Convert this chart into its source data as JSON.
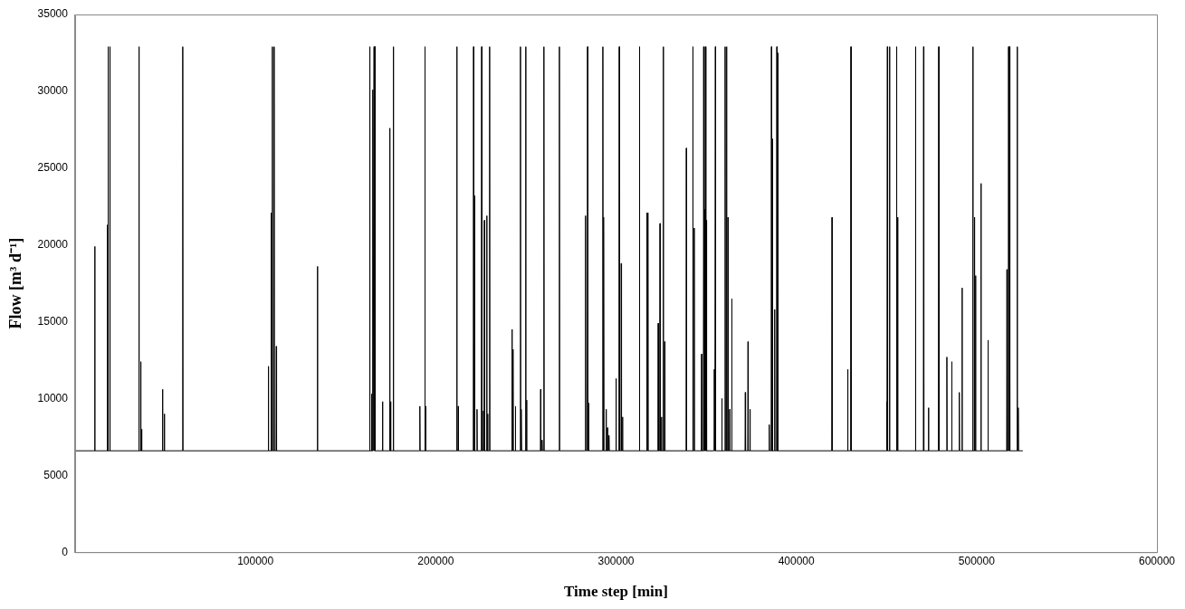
{
  "chart_data": {
    "type": "line",
    "xlabel": "Time step [min]",
    "ylabel": "Flow [m³ d⁻¹]",
    "xlim": [
      0,
      600000
    ],
    "xticks": [
      100000,
      200000,
      300000,
      400000,
      500000,
      600000
    ],
    "ylim": [
      0,
      35000
    ],
    "yticks": [
      0,
      5000,
      10000,
      15000,
      20000,
      25000,
      30000,
      35000
    ],
    "grid": false,
    "legend": false,
    "marker": "none",
    "line_style": "solid",
    "series": [
      {
        "color": "#000000",
        "x": [
          0,
          10750,
          10900,
          11050,
          17650,
          17800,
          17950,
          18150,
          18300,
          18450,
          19150,
          19300,
          19450,
          35250,
          35400,
          35550,
          36250,
          36400,
          36550,
          36750,
          36900,
          37050,
          48350,
          48500,
          48650,
          49350,
          49500,
          49650,
          59550,
          59700,
          59850,
          107050,
          107200,
          107350,
          108550,
          108700,
          108850,
          109250,
          109400,
          109550,
          110250,
          110400,
          110550,
          111450,
          111600,
          111750,
          134250,
          134400,
          134550,
          163250,
          163400,
          163550,
          164250,
          164400,
          164550,
          164950,
          165100,
          165250,
          165650,
          165800,
          165950,
          166150,
          166300,
          166450,
          170350,
          170500,
          170650,
          174350,
          174500,
          174650,
          174850,
          175000,
          175150,
          176350,
          176500,
          176650,
          191050,
          191200,
          191350,
          193850,
          194000,
          194150,
          194350,
          194500,
          194650,
          211550,
          211700,
          211850,
          212350,
          212500,
          212650,
          220850,
          221000,
          221150,
          221450,
          221600,
          221750,
          222750,
          222900,
          223050,
          225350,
          225500,
          225650,
          226350,
          226500,
          226650,
          226850,
          227000,
          227150,
          228150,
          228300,
          228450,
          228650,
          228800,
          228950,
          229750,
          229900,
          230050,
          242150,
          242300,
          242450,
          242750,
          242900,
          243050,
          244050,
          244200,
          244350,
          246850,
          247000,
          247150,
          247350,
          247500,
          247650,
          249750,
          249900,
          250050,
          250250,
          250400,
          250550,
          258050,
          258200,
          258350,
          258850,
          259000,
          259150,
          259850,
          260000,
          260150,
          268450,
          268600,
          268750,
          282950,
          283100,
          283250,
          284050,
          284200,
          284350,
          284550,
          284700,
          284850,
          292550,
          292700,
          292850,
          293050,
          293200,
          293350,
          294350,
          294500,
          294650,
          295150,
          295300,
          295450,
          295950,
          296100,
          296250,
          299850,
          300000,
          300150,
          301650,
          301800,
          301950,
          302750,
          302900,
          303050,
          303450,
          303600,
          303750,
          312850,
          313000,
          313150,
          316950,
          317100,
          317250,
          317550,
          317700,
          317850,
          323250,
          323400,
          323550,
          324250,
          324400,
          324550,
          325050,
          325200,
          325350,
          326050,
          326200,
          326350,
          326850,
          327000,
          327150,
          338850,
          339000,
          339150,
          342450,
          342600,
          342750,
          343250,
          343400,
          343550,
          347350,
          347500,
          347650,
          348450,
          348600,
          348750,
          348950,
          349100,
          349250,
          349450,
          349600,
          349750,
          349950,
          350100,
          350250,
          354350,
          354500,
          354650,
          354950,
          355100,
          355250,
          358550,
          358700,
          358850,
          360350,
          360500,
          360650,
          361150,
          361300,
          361450,
          361950,
          362100,
          362250,
          362950,
          363100,
          363250,
          364050,
          364200,
          364350,
          371550,
          371700,
          371850,
          373050,
          373200,
          373350,
          374150,
          374300,
          374450,
          384850,
          385000,
          385150,
          386050,
          386200,
          386350,
          386650,
          386800,
          386950,
          387850,
          388000,
          388150,
          389050,
          389200,
          389350,
          389650,
          389800,
          389950,
          419650,
          419800,
          419950,
          428350,
          428500,
          428650,
          430150,
          430300,
          430450,
          449950,
          450100,
          450250,
          450350,
          450500,
          450650,
          451550,
          451700,
          451850,
          455450,
          455600,
          455750,
          456050,
          456200,
          456350,
          465950,
          466100,
          466250,
          470450,
          470600,
          470750,
          473150,
          473300,
          473450,
          478850,
          479000,
          479150,
          483350,
          483500,
          483650,
          486050,
          486200,
          486350,
          490250,
          490400,
          490550,
          491750,
          491900,
          492050,
          497750,
          497900,
          498050,
          498650,
          498800,
          498950,
          499250,
          499400,
          499550,
          502250,
          502400,
          502550,
          506150,
          506300,
          506450,
          516650,
          516800,
          516950,
          517550,
          517700,
          517850,
          518150,
          518300,
          518450,
          522350,
          522500,
          522650,
          522950,
          523100,
          523250,
          525600
        ],
        "values": [
          6600,
          6600,
          19900,
          6600,
          6600,
          21300,
          6600,
          6600,
          32900,
          6600,
          6600,
          32900,
          6600,
          6600,
          32900,
          6600,
          6600,
          12400,
          6600,
          6600,
          8000,
          6600,
          6600,
          10600,
          6600,
          6600,
          9000,
          6600,
          6600,
          32900,
          6600,
          6600,
          12100,
          6600,
          6600,
          22100,
          6600,
          6600,
          32900,
          6600,
          6600,
          32900,
          6600,
          6600,
          13400,
          6600,
          6600,
          18600,
          6600,
          6600,
          32900,
          6600,
          6600,
          10300,
          6600,
          6600,
          30100,
          6600,
          6600,
          32900,
          6600,
          6600,
          32900,
          6600,
          6600,
          9800,
          6600,
          6600,
          27600,
          6600,
          6600,
          9800,
          6600,
          6600,
          32900,
          6600,
          6600,
          9500,
          6600,
          6600,
          32900,
          6600,
          6600,
          9500,
          6600,
          6600,
          32900,
          6600,
          6600,
          9500,
          6600,
          6600,
          32900,
          6600,
          6600,
          23200,
          6600,
          6600,
          9300,
          6600,
          6600,
          32900,
          6600,
          6600,
          9200,
          6600,
          6600,
          21600,
          6600,
          6600,
          21900,
          6600,
          6600,
          9000,
          6600,
          6600,
          32900,
          6600,
          6600,
          14500,
          6600,
          6600,
          13200,
          6600,
          6600,
          9500,
          6600,
          6600,
          32900,
          6600,
          6600,
          9300,
          6600,
          6600,
          32900,
          6600,
          6600,
          9900,
          6600,
          6600,
          10600,
          6600,
          6600,
          7300,
          6600,
          6600,
          32900,
          6600,
          6600,
          32900,
          6600,
          6600,
          21900,
          6600,
          6600,
          32900,
          6600,
          6600,
          9700,
          6600,
          6600,
          32900,
          6600,
          6600,
          21800,
          6600,
          6600,
          9300,
          6600,
          6600,
          8100,
          6600,
          6600,
          7600,
          6600,
          6600,
          11300,
          6600,
          6600,
          32900,
          6600,
          6600,
          18800,
          6600,
          6600,
          8800,
          6600,
          6600,
          32900,
          6600,
          6600,
          22100,
          6600,
          6600,
          22100,
          6600,
          6600,
          14900,
          6600,
          6600,
          21400,
          6600,
          6600,
          8800,
          6600,
          6600,
          32900,
          6600,
          6600,
          13700,
          6600,
          6600,
          26300,
          6600,
          6600,
          32900,
          6600,
          6600,
          21100,
          6600,
          6600,
          12900,
          6600,
          6600,
          32900,
          6600,
          6600,
          22300,
          6600,
          6600,
          32900,
          6600,
          6600,
          21600,
          6600,
          6600,
          11900,
          6600,
          6600,
          32900,
          6600,
          6600,
          10000,
          6600,
          6600,
          32900,
          6600,
          6600,
          32900,
          6600,
          6600,
          21800,
          6600,
          6600,
          9300,
          6600,
          6600,
          16500,
          6600,
          6600,
          10400,
          6600,
          6600,
          13700,
          6600,
          6600,
          9300,
          6600,
          6600,
          8300,
          6600,
          6600,
          32900,
          6600,
          6600,
          26900,
          6600,
          6600,
          15800,
          6600,
          6600,
          32900,
          6600,
          6600,
          32500,
          6600,
          6600,
          21800,
          6600,
          6600,
          11900,
          6600,
          6600,
          32900,
          6600,
          6600,
          9800,
          6600,
          6600,
          32900,
          6600,
          6600,
          32900,
          6600,
          6600,
          32900,
          6600,
          6600,
          21800,
          6600,
          6600,
          32900,
          6600,
          6600,
          32900,
          6600,
          6600,
          9400,
          6600,
          6600,
          32900,
          6600,
          6600,
          12700,
          6600,
          6600,
          12400,
          6600,
          6600,
          10400,
          6600,
          6600,
          17200,
          6600,
          6600,
          32900,
          6600,
          6600,
          21800,
          6600,
          6600,
          18000,
          6600,
          6600,
          24000,
          6600,
          6600,
          13800,
          6600,
          6600,
          18400,
          6600,
          6600,
          32900,
          6600,
          6600,
          32900,
          6600,
          6600,
          32900,
          6600,
          6600,
          9400,
          6600,
          6600
        ]
      }
    ]
  }
}
